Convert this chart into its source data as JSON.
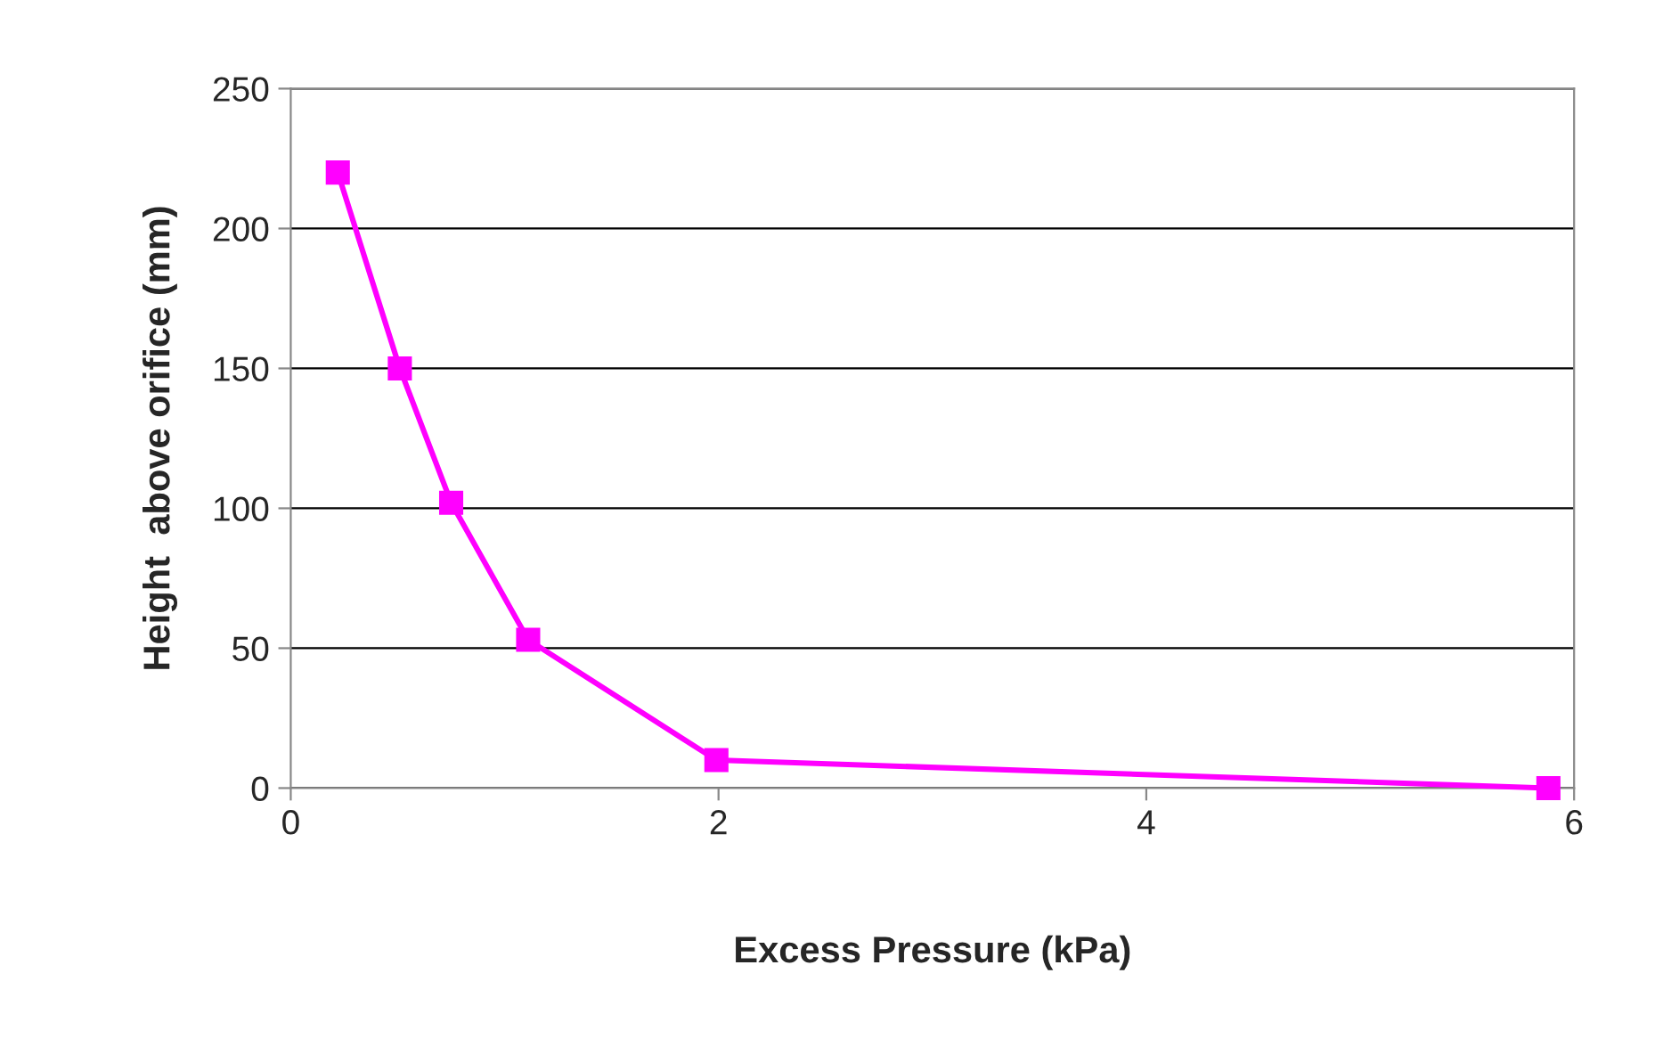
{
  "chart_data": {
    "type": "line",
    "xlabel": "Excess Pressure (kPa)",
    "ylabel": "Height  above orifice (mm)",
    "x": [
      0.22,
      0.51,
      0.75,
      1.11,
      1.99,
      5.88
    ],
    "series": [
      {
        "color": "#ff00ff",
        "values": [
          220,
          150,
          102,
          53,
          10,
          0
        ]
      }
    ],
    "xlim": [
      0,
      6
    ],
    "xticks": [
      0,
      2,
      4,
      6
    ],
    "ylim": [
      0,
      250
    ],
    "yticks": [
      0,
      50,
      100,
      150,
      200,
      250
    ],
    "grid": "y",
    "marker": "square",
    "line_style": "solid"
  }
}
